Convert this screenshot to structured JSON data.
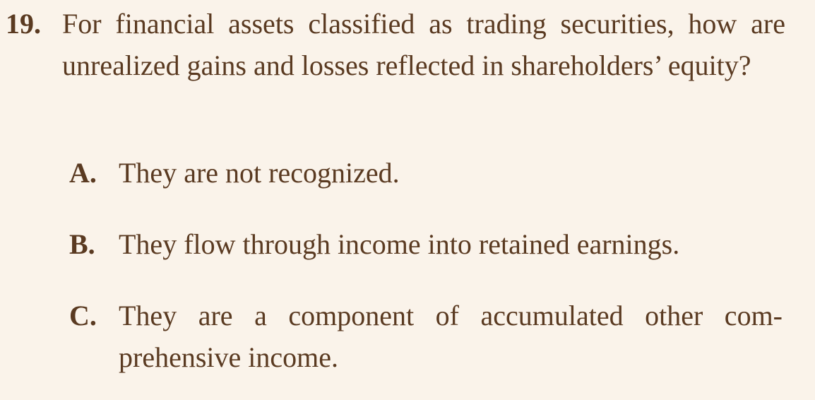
{
  "question": {
    "number": "19.",
    "text": "For financial assets classified as trading securities, how are unrealized gains and losses reflected in shareholders’ equity?"
  },
  "options": [
    {
      "letter": "A.",
      "text": "They are not recognized."
    },
    {
      "letter": "B.",
      "text": "They flow through income into retained earnings."
    },
    {
      "letter": "C.",
      "text": "They are a component of accumulated other com-prehensive income."
    }
  ]
}
